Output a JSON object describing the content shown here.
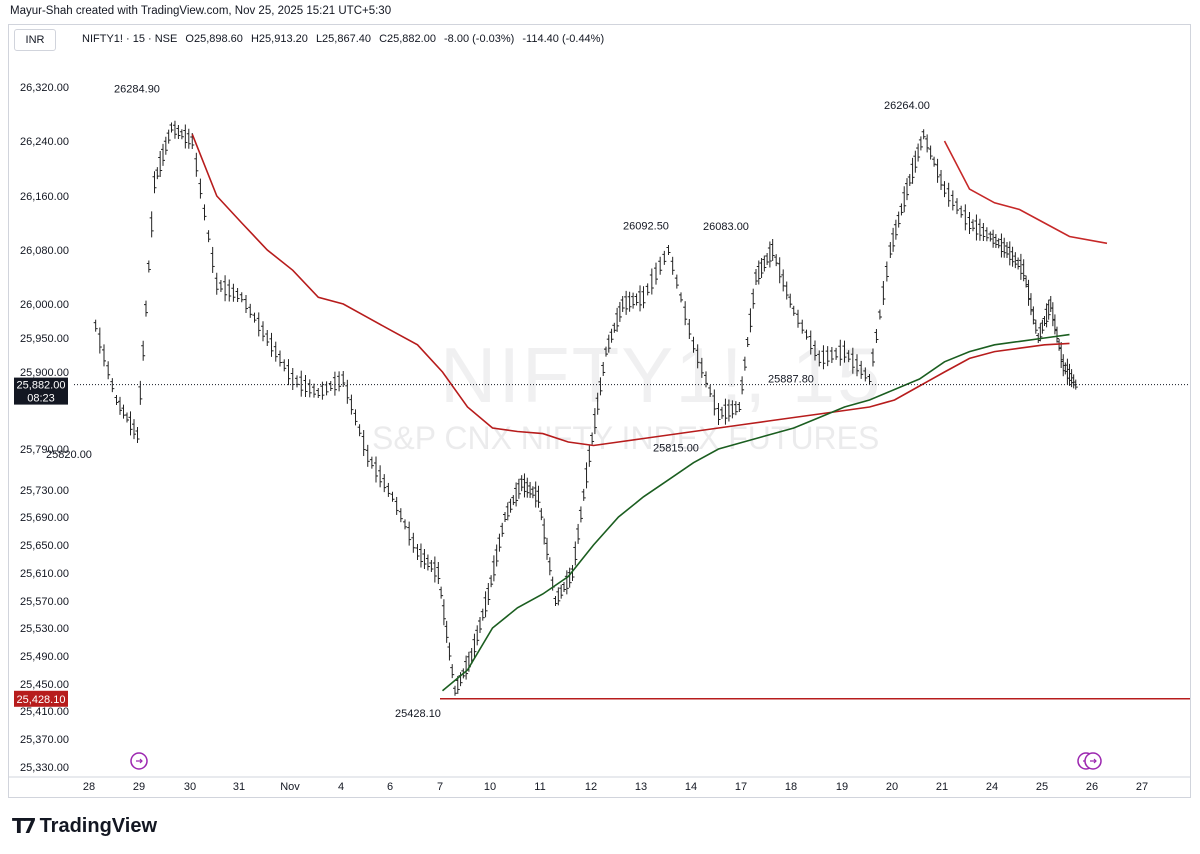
{
  "header": {
    "credit": "Mayur-Shah created with TradingView.com, Nov 25, 2025 15:21 UTC+5:30",
    "currency": "INR",
    "symbol": "NIFTY1! · 15 · NSE",
    "open": "O25,898.60",
    "high": "H25,913.20",
    "low": "L25,867.40",
    "close": "C25,882.00",
    "change": "-8.00 (-0.03%)",
    "change2": "-114.40 (-0.44%)"
  },
  "watermark": {
    "symbol": "NIFTY1!, 15",
    "description": "S&P CNX NIFTY INDEX FUTURES"
  },
  "footer": {
    "brand": "TradingView"
  },
  "chart_data": {
    "type": "candlestick",
    "ylim": [
      25330,
      26320
    ],
    "y_ticks": [
      "26,320.00",
      "26,240.00",
      "26,160.00",
      "26,080.00",
      "26,000.00",
      "25,950.00",
      "25,900.00",
      "25,790.00",
      "25,730.00",
      "25,690.00",
      "25,650.00",
      "25,610.00",
      "25,570.00",
      "25,530.00",
      "25,490.00",
      "25,450.00",
      "25,410.00",
      "25,370.00",
      "25,330.00"
    ],
    "y_tick_values": [
      26320,
      26240,
      26160,
      26080,
      26000,
      25950,
      25900,
      25790,
      25730,
      25690,
      25650,
      25610,
      25570,
      25530,
      25490,
      25450,
      25410,
      25370,
      25330
    ],
    "x_ticks": [
      "28",
      "29",
      "30",
      "31",
      "Nov",
      "4",
      "6",
      "7",
      "10",
      "11",
      "12",
      "13",
      "14",
      "17",
      "18",
      "19",
      "20",
      "21",
      "24",
      "25",
      "26",
      "27"
    ],
    "current_price": {
      "label": "25,882.00",
      "countdown": "08:23",
      "value": 25882,
      "color": "#131722"
    },
    "support": {
      "label": "25,428.10",
      "value": 25428.1,
      "color": "#b71c1c"
    },
    "annotations": [
      {
        "text": "26284.90",
        "x": "29",
        "y": 26284.9
      },
      {
        "text": "25820.00",
        "x": "28",
        "y": 25820
      },
      {
        "text": "25428.10",
        "x": "7",
        "y": 25428.1
      },
      {
        "text": "26092.50",
        "x": "13",
        "y": 26092.5
      },
      {
        "text": "26083.00",
        "x": "17",
        "y": 26083
      },
      {
        "text": "25815.00",
        "x": "14",
        "y": 25815
      },
      {
        "text": "25887.80",
        "x": "18",
        "y": 25887.8
      },
      {
        "text": "26264.00",
        "x": "20",
        "y": 26264
      }
    ],
    "price_series": [
      [
        "28",
        25990
      ],
      [
        "28",
        25860
      ],
      [
        "29",
        25810
      ],
      [
        "29",
        26180
      ],
      [
        "29",
        26260
      ],
      [
        "30",
        26240
      ],
      [
        "30",
        26030
      ],
      [
        "31",
        26010
      ],
      [
        "31",
        25950
      ],
      [
        "Nov",
        25890
      ],
      [
        "Nov",
        25870
      ],
      [
        "4",
        25890
      ],
      [
        "4",
        25780
      ],
      [
        "6",
        25720
      ],
      [
        "6",
        25640
      ],
      [
        "7",
        25610
      ],
      [
        "7",
        25440
      ],
      [
        "7",
        25490
      ],
      [
        "10",
        25580
      ],
      [
        "10",
        25690
      ],
      [
        "10",
        25740
      ],
      [
        "11",
        25720
      ],
      [
        "11",
        25570
      ],
      [
        "11",
        25610
      ],
      [
        "12",
        25780
      ],
      [
        "12",
        25930
      ],
      [
        "12",
        26000
      ],
      [
        "13",
        26010
      ],
      [
        "13",
        26080
      ],
      [
        "14",
        25940
      ],
      [
        "14",
        25840
      ],
      [
        "17",
        25850
      ],
      [
        "17",
        26040
      ],
      [
        "17",
        26080
      ],
      [
        "18",
        25990
      ],
      [
        "18",
        25920
      ],
      [
        "19",
        25930
      ],
      [
        "19",
        25890
      ],
      [
        "20",
        26080
      ],
      [
        "20",
        26170
      ],
      [
        "20",
        26250
      ],
      [
        "21",
        26170
      ],
      [
        "21",
        26120
      ],
      [
        "24",
        26100
      ],
      [
        "24",
        26080
      ],
      [
        "24",
        26050
      ],
      [
        "25",
        25950
      ],
      [
        "25",
        26000
      ],
      [
        "25",
        25910
      ],
      [
        "25",
        25882
      ]
    ],
    "series": [
      {
        "name": "",
        "color": "#b71c1c",
        "values": [
          [
            "30",
            26250
          ],
          [
            "30",
            26160
          ],
          [
            "31",
            26120
          ],
          [
            "31",
            26080
          ],
          [
            "Nov",
            26050
          ],
          [
            "Nov",
            26010
          ],
          [
            "4",
            26000
          ],
          [
            "4",
            25980
          ],
          [
            "6",
            25960
          ],
          [
            "6",
            25940
          ],
          [
            "7",
            25900
          ],
          [
            "7",
            25850
          ],
          [
            "10",
            25820
          ],
          [
            "10",
            25815
          ],
          [
            "11",
            25812
          ],
          [
            "11",
            25800
          ],
          [
            "12",
            25795
          ],
          [
            "12",
            25800
          ],
          [
            "13",
            25805
          ],
          [
            "13",
            25810
          ],
          [
            "14",
            25815
          ],
          [
            "14",
            25820
          ],
          [
            "17",
            25825
          ],
          [
            "17",
            25830
          ],
          [
            "18",
            25835
          ],
          [
            "18",
            25840
          ],
          [
            "19",
            25845
          ],
          [
            "19",
            25850
          ],
          [
            "20",
            25860
          ],
          [
            "20",
            25880
          ],
          [
            "21",
            25900
          ],
          [
            "21",
            25920
          ],
          [
            "24",
            25930
          ],
          [
            "24",
            25935
          ],
          [
            "25",
            25940
          ],
          [
            "25",
            25942
          ]
        ]
      },
      {
        "name": "",
        "color": "#1b5e20",
        "values": [
          [
            "7",
            25440
          ],
          [
            "7",
            25470
          ],
          [
            "10",
            25530
          ],
          [
            "10",
            25560
          ],
          [
            "11",
            25580
          ],
          [
            "11",
            25605
          ],
          [
            "12",
            25650
          ],
          [
            "12",
            25690
          ],
          [
            "13",
            25720
          ],
          [
            "13",
            25745
          ],
          [
            "14",
            25770
          ],
          [
            "14",
            25790
          ],
          [
            "17",
            25800
          ],
          [
            "17",
            25810
          ],
          [
            "18",
            25820
          ],
          [
            "18",
            25835
          ],
          [
            "19",
            25850
          ],
          [
            "19",
            25860
          ],
          [
            "20",
            25875
          ],
          [
            "20",
            25890
          ],
          [
            "21",
            25915
          ],
          [
            "21",
            25930
          ],
          [
            "24",
            25940
          ],
          [
            "24",
            25945
          ],
          [
            "25",
            25950
          ],
          [
            "25",
            25955
          ]
        ]
      },
      {
        "name": "",
        "color": "#c62828",
        "values": [
          [
            "21",
            26240
          ],
          [
            "21",
            26170
          ],
          [
            "24",
            26150
          ],
          [
            "24",
            26140
          ],
          [
            "25",
            26120
          ],
          [
            "25",
            26100
          ],
          [
            "26",
            26090
          ]
        ]
      }
    ]
  }
}
